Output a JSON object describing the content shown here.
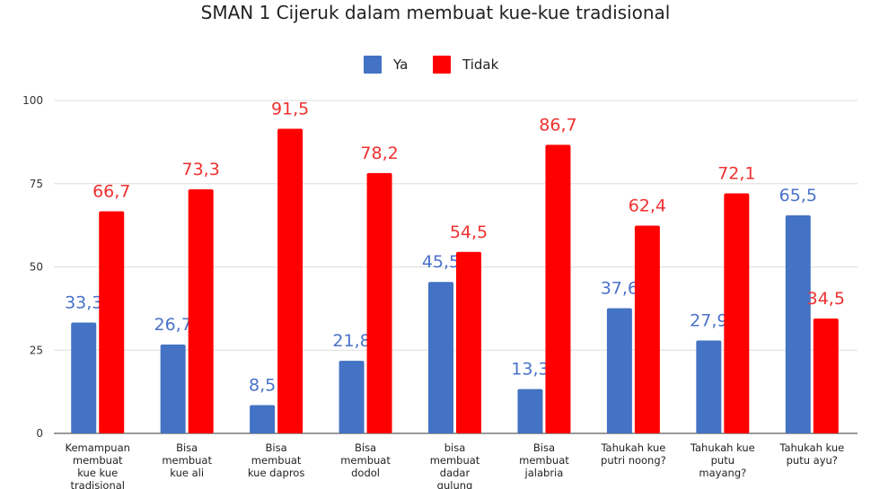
{
  "chart_data": {
    "type": "bar",
    "title": "SMAN 1 Cijeruk dalam membuat kue-kue tradisional",
    "categories": [
      "Kemampuan membuat kue kue tradisional",
      "Bisa membuat kue ali",
      "Bisa membuat kue dapros",
      "Bisa membuat dodol",
      "bisa membuat dadar gulung",
      "Bisa membuat jalabria",
      "Tahukah kue putri noong?",
      "Tahukah kue putu mayang?",
      "Tahukah kue putu ayu?"
    ],
    "category_lines": [
      [
        "Kemampuan",
        "membuat",
        "kue kue",
        "tradisional"
      ],
      [
        "Bisa",
        "membuat",
        "kue ali"
      ],
      [
        "Bisa",
        "membuat",
        "kue dapros"
      ],
      [
        "Bisa",
        "membuat",
        "dodol"
      ],
      [
        "bisa",
        "membuat",
        "dadar",
        "gulung"
      ],
      [
        "Bisa",
        "membuat",
        "jalabria"
      ],
      [
        "Tahukah kue",
        "putri noong?"
      ],
      [
        "Tahukah kue",
        "putu",
        "mayang?"
      ],
      [
        "Tahukah kue",
        "putu ayu?"
      ]
    ],
    "series": [
      {
        "name": "Ya",
        "color": "#4472C4",
        "label_color": "#4A72C9",
        "values": [
          33.3,
          26.7,
          8.5,
          21.8,
          45.5,
          13.3,
          37.6,
          27.9,
          65.5
        ],
        "labels": [
          "33,3",
          "26,7",
          "8,5",
          "21,8",
          "45,5",
          "13,3",
          "37,6",
          "27,9",
          "65,5"
        ]
      },
      {
        "name": "Tidak",
        "color": "#FF0000",
        "label_color": "#F03030",
        "values": [
          66.7,
          73.3,
          91.5,
          78.2,
          54.5,
          86.7,
          62.4,
          72.1,
          34.5
        ],
        "labels": [
          "66,7",
          "73,3",
          "91,5",
          "78,2",
          "54,5",
          "86,7",
          "62,4",
          "72,1",
          "34,5"
        ]
      }
    ],
    "ylim": [
      0,
      100
    ],
    "yticks": [
      0,
      25,
      50,
      75,
      100
    ],
    "xlabel": "",
    "ylabel": "",
    "grid": true,
    "legend_position": "top-center",
    "gridline_color": "#DDDDDD"
  }
}
